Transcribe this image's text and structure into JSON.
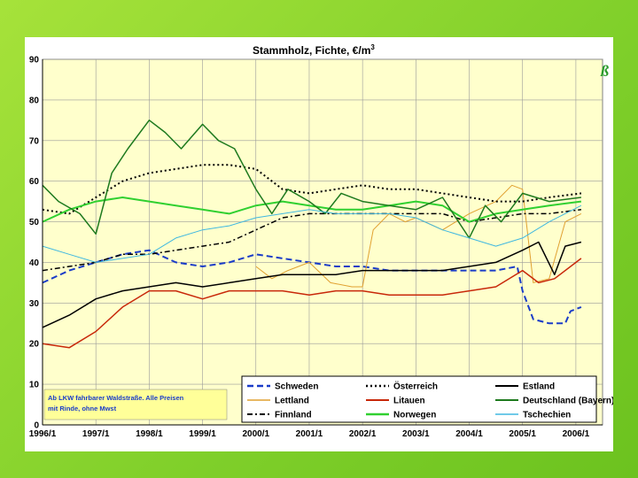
{
  "chart_data": {
    "type": "line",
    "title": "Stammholz, Fichte, €/m",
    "title_superscript": "3",
    "xlabel": "",
    "ylabel": "",
    "ylim": [
      0,
      90
    ],
    "yticks": [
      0,
      10,
      20,
      30,
      40,
      50,
      60,
      70,
      80,
      90
    ],
    "xlim": [
      1996.0,
      2006.5
    ],
    "xtick_values": [
      1996,
      1997,
      1998,
      1999,
      2000,
      2001,
      2002,
      2003,
      2004,
      2005,
      2006
    ],
    "xtick_labels": [
      "1996/1",
      "1997/1",
      "1998/1",
      "1999/1",
      "2000/1",
      "2001/1",
      "2002/1",
      "2003/1",
      "2004/1",
      "2005/1",
      "2006/1"
    ],
    "grid": true,
    "legend_position": "bottom-right",
    "note": [
      "Ab LKW fahrbarer Waldstraße. Alle Preisen",
      "mit Rinde, ohne Mwst"
    ],
    "logo_text": "ß",
    "series": [
      {
        "name": "Schweden",
        "color": "#1a3cc8",
        "dash": "7,4",
        "width": 2,
        "x": [
          1996.0,
          1996.5,
          1997.0,
          1997.5,
          1998.0,
          1998.5,
          1999.0,
          1999.5,
          2000.0,
          2000.5,
          2001.0,
          2001.5,
          2002.0,
          2002.5,
          2003.0,
          2003.5,
          2004.0,
          2004.5,
          2004.9,
          2005.0,
          2005.2,
          2005.5,
          2005.8,
          2005.9,
          2006.1
        ],
        "y": [
          35,
          38,
          40,
          42,
          43,
          40,
          39,
          40,
          42,
          41,
          40,
          39,
          39,
          38,
          38,
          38,
          38,
          38,
          39,
          33,
          26,
          25,
          25,
          28,
          29
        ]
      },
      {
        "name": "Lettland",
        "color": "#e0a030",
        "dash": "",
        "width": 1,
        "x": [
          2000.0,
          2000.3,
          2000.6,
          2001.0,
          2001.4,
          2001.8,
          2002.0,
          2002.2,
          2002.5,
          2002.8,
          2003.0,
          2003.5,
          2004.0,
          2004.5,
          2004.8,
          2005.0,
          2005.2,
          2005.5,
          2005.8,
          2006.1
        ],
        "y": [
          39,
          36,
          38,
          40,
          35,
          34,
          34,
          48,
          52,
          50,
          51,
          48,
          52,
          55,
          59,
          58,
          35,
          36,
          50,
          52
        ]
      },
      {
        "name": "Finnland",
        "color": "#000000",
        "dash": "6,3,2,3",
        "width": 1.5,
        "x": [
          1996.0,
          1996.5,
          1997.0,
          1997.5,
          1998.0,
          1998.5,
          1999.0,
          1999.5,
          2000.0,
          2000.5,
          2001.0,
          2001.5,
          2002.0,
          2002.5,
          2003.0,
          2003.5,
          2004.0,
          2004.5,
          2005.0,
          2005.5,
          2006.1
        ],
        "y": [
          38,
          39,
          40,
          42,
          42,
          43,
          44,
          45,
          48,
          51,
          52,
          52,
          52,
          52,
          52,
          52,
          50,
          51,
          52,
          52,
          53
        ]
      },
      {
        "name": "Österreich",
        "color": "#000000",
        "dash": "2,3",
        "width": 2,
        "x": [
          1996.0,
          1996.5,
          1997.0,
          1997.5,
          1998.0,
          1998.5,
          1999.0,
          1999.5,
          2000.0,
          2000.5,
          2001.0,
          2001.5,
          2002.0,
          2002.5,
          2003.0,
          2003.5,
          2004.0,
          2004.5,
          2005.0,
          2005.5,
          2006.1
        ],
        "y": [
          53,
          52,
          56,
          60,
          62,
          63,
          64,
          64,
          63,
          58,
          57,
          58,
          59,
          58,
          58,
          57,
          56,
          55,
          55,
          56,
          57
        ]
      },
      {
        "name": "Litauen",
        "color": "#c8280a",
        "dash": "",
        "width": 1.5,
        "x": [
          1996.0,
          1996.5,
          1997.0,
          1997.5,
          1998.0,
          1998.5,
          1999.0,
          1999.5,
          2000.0,
          2000.5,
          2001.0,
          2001.5,
          2002.0,
          2002.5,
          2003.0,
          2003.5,
          2004.0,
          2004.5,
          2005.0,
          2005.3,
          2005.6,
          2006.1
        ],
        "y": [
          20,
          19,
          23,
          29,
          33,
          33,
          31,
          33,
          33,
          33,
          32,
          33,
          33,
          32,
          32,
          32,
          33,
          34,
          38,
          35,
          36,
          41
        ]
      },
      {
        "name": "Norwegen",
        "color": "#30d030",
        "dash": "",
        "width": 2,
        "x": [
          1996.0,
          1996.5,
          1997.0,
          1997.5,
          1998.0,
          1998.5,
          1999.0,
          1999.5,
          2000.0,
          2000.5,
          2001.0,
          2001.5,
          2002.0,
          2002.5,
          2003.0,
          2003.5,
          2004.0,
          2004.5,
          2005.0,
          2005.5,
          2006.1
        ],
        "y": [
          50,
          53,
          55,
          56,
          55,
          54,
          53,
          52,
          54,
          55,
          54,
          53,
          53,
          54,
          55,
          54,
          50,
          52,
          53,
          54,
          55
        ]
      },
      {
        "name": "Estland",
        "color": "#000000",
        "dash": "",
        "width": 1.5,
        "x": [
          1996.0,
          1996.5,
          1997.0,
          1997.5,
          1998.0,
          1998.5,
          1999.0,
          1999.5,
          2000.0,
          2000.5,
          2001.0,
          2001.5,
          2002.0,
          2002.5,
          2003.0,
          2003.5,
          2004.0,
          2004.5,
          2005.0,
          2005.3,
          2005.6,
          2005.8,
          2006.1
        ],
        "y": [
          24,
          27,
          31,
          33,
          34,
          35,
          34,
          35,
          36,
          37,
          37,
          37,
          38,
          38,
          38,
          38,
          39,
          40,
          43,
          45,
          37,
          44,
          45
        ]
      },
      {
        "name": "Deutschland (Bayern)",
        "color": "#1e7a1e",
        "dash": "",
        "width": 1.5,
        "x": [
          1996.0,
          1996.3,
          1996.7,
          1997.0,
          1997.3,
          1997.6,
          1998.0,
          1998.3,
          1998.6,
          1999.0,
          1999.3,
          1999.6,
          2000.0,
          2000.3,
          2000.6,
          2001.0,
          2001.3,
          2001.6,
          2002.0,
          2002.5,
          2003.0,
          2003.5,
          2004.0,
          2004.3,
          2004.6,
          2005.0,
          2005.5,
          2006.1
        ],
        "y": [
          59,
          55,
          52,
          47,
          62,
          68,
          75,
          72,
          68,
          74,
          70,
          68,
          58,
          52,
          58,
          55,
          52,
          57,
          55,
          54,
          53,
          56,
          46,
          54,
          50,
          57,
          55,
          56
        ]
      },
      {
        "name": "Tschechien",
        "color": "#40b8e0",
        "dash": "",
        "width": 1,
        "x": [
          1996.0,
          1996.5,
          1997.0,
          1997.5,
          1998.0,
          1998.5,
          1999.0,
          1999.5,
          2000.0,
          2000.5,
          2001.0,
          2001.5,
          2002.0,
          2002.5,
          2003.0,
          2003.5,
          2004.0,
          2004.5,
          2005.0,
          2005.5,
          2006.1
        ],
        "y": [
          44,
          42,
          40,
          41,
          42,
          46,
          48,
          49,
          51,
          52,
          53,
          52,
          52,
          52,
          51,
          48,
          46,
          44,
          46,
          50,
          54
        ]
      }
    ]
  }
}
